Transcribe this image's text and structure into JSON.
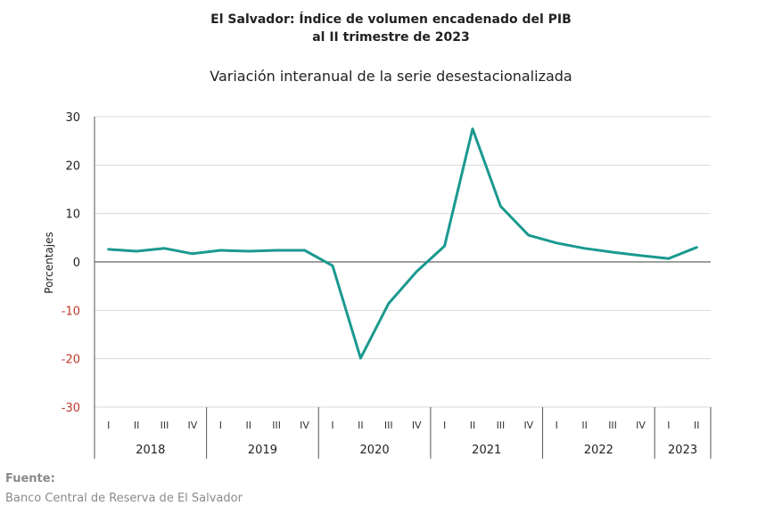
{
  "chart_data": {
    "type": "line",
    "title_line1": "El Salvador: Índice de volumen encadenado del PIB",
    "title_line2": "al II trimestre de 2023",
    "subtitle": "Variación interanual de la serie desestacionalizada",
    "ylabel": "Porcentajes",
    "xlabel": "",
    "ylim": [
      -30,
      30
    ],
    "yticks": [
      30,
      20,
      10,
      0,
      -10,
      -20,
      -30
    ],
    "grid": true,
    "quarter_labels": [
      "I",
      "II",
      "III",
      "IV",
      "I",
      "II",
      "III",
      "IV",
      "I",
      "II",
      "III",
      "IV",
      "I",
      "II",
      "III",
      "IV",
      "I",
      "II",
      "III",
      "IV",
      "I",
      "II"
    ],
    "years": [
      {
        "label": "2018",
        "quarters": 4
      },
      {
        "label": "2019",
        "quarters": 4
      },
      {
        "label": "2020",
        "quarters": 4
      },
      {
        "label": "2021",
        "quarters": 4
      },
      {
        "label": "2022",
        "quarters": 4
      },
      {
        "label": "2023",
        "quarters": 2
      }
    ],
    "series": [
      {
        "values": [
          2.6,
          2.2,
          2.8,
          1.7,
          2.4,
          2.2,
          2.4,
          2.4,
          -0.8,
          -19.9,
          -8.6,
          -2.0,
          3.3,
          27.5,
          11.5,
          5.5,
          3.9,
          2.8,
          2.0,
          1.3,
          0.7,
          3.0
        ],
        "color": "#1a9990"
      }
    ],
    "colors": {
      "line": "#1a9990",
      "grid": "#d9d9d9",
      "zero_line": "#666666",
      "negative_tick": "#c0392b",
      "positive_tick": "#222222"
    }
  },
  "source": {
    "label": "Fuente:",
    "text": "Banco Central de Reserva de El Salvador"
  }
}
